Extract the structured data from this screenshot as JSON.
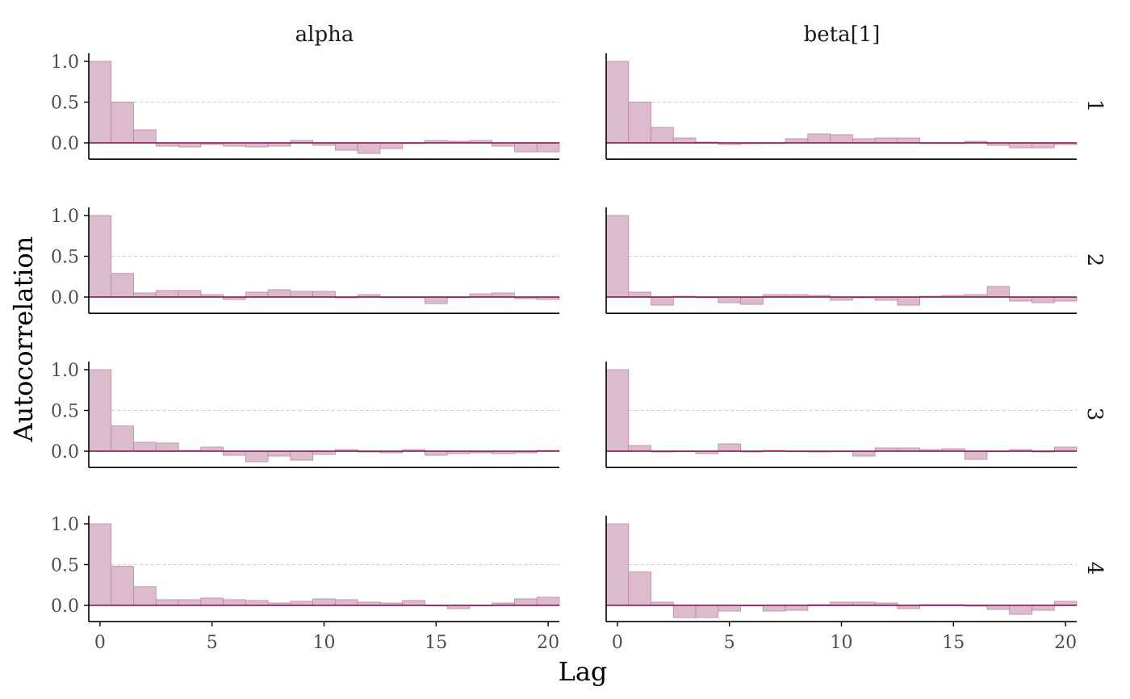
{
  "colors": {
    "bar_fill": "#dcbccc",
    "bar_stroke": "#b98aa2",
    "zero_line": "#7b0d4a",
    "grid": "#d2d2d2"
  },
  "chart_data": {
    "type": "bar",
    "xlabel": "Lag",
    "ylabel": "Autocorrelation",
    "xlim": [
      -0.5,
      20.5
    ],
    "ylim": [
      -0.2,
      1.1
    ],
    "x_ticks": [
      0,
      5,
      10,
      15,
      20
    ],
    "y_ticks": [
      0.0,
      0.5,
      1.0
    ],
    "y_tick_labels": [
      "0.0",
      "0.5",
      "1.0"
    ],
    "grid": "dashed horizontal at 0.5",
    "columns": [
      "alpha",
      "beta[1]"
    ],
    "rows": [
      "1",
      "2",
      "3",
      "4"
    ],
    "panels": [
      {
        "parameter": "alpha",
        "chain": "1",
        "lags": [
          0,
          1,
          2,
          3,
          4,
          5,
          6,
          7,
          8,
          9,
          10,
          11,
          12,
          13,
          14,
          15,
          16,
          17,
          18,
          19,
          20
        ],
        "values": [
          1.0,
          0.5,
          0.16,
          -0.04,
          -0.05,
          -0.02,
          -0.04,
          -0.05,
          -0.04,
          0.03,
          -0.03,
          -0.09,
          -0.13,
          -0.07,
          0.0,
          0.03,
          0.02,
          0.03,
          -0.04,
          -0.11,
          -0.11
        ]
      },
      {
        "parameter": "beta[1]",
        "chain": "1",
        "lags": [
          0,
          1,
          2,
          3,
          4,
          5,
          6,
          7,
          8,
          9,
          10,
          11,
          12,
          13,
          14,
          15,
          16,
          17,
          18,
          19,
          20
        ],
        "values": [
          1.0,
          0.5,
          0.19,
          0.06,
          0.01,
          -0.02,
          -0.01,
          0.0,
          0.05,
          0.11,
          0.1,
          0.05,
          0.06,
          0.06,
          0.0,
          0.0,
          0.02,
          -0.03,
          -0.06,
          -0.06,
          -0.02
        ]
      },
      {
        "parameter": "alpha",
        "chain": "2",
        "lags": [
          0,
          1,
          2,
          3,
          4,
          5,
          6,
          7,
          8,
          9,
          10,
          11,
          12,
          13,
          14,
          15,
          16,
          17,
          18,
          19,
          20
        ],
        "values": [
          1.0,
          0.29,
          0.05,
          0.08,
          0.08,
          0.03,
          -0.03,
          0.06,
          0.09,
          0.07,
          0.07,
          -0.01,
          0.03,
          0.0,
          0.0,
          -0.08,
          0.0,
          0.04,
          0.05,
          -0.02,
          -0.03
        ]
      },
      {
        "parameter": "beta[1]",
        "chain": "2",
        "lags": [
          0,
          1,
          2,
          3,
          4,
          5,
          6,
          7,
          8,
          9,
          10,
          11,
          12,
          13,
          14,
          15,
          16,
          17,
          18,
          19,
          20
        ],
        "values": [
          1.0,
          0.06,
          -0.1,
          0.01,
          0.0,
          -0.07,
          -0.09,
          0.03,
          0.03,
          0.02,
          -0.04,
          -0.01,
          -0.04,
          -0.1,
          0.01,
          0.02,
          0.03,
          0.13,
          -0.05,
          -0.07,
          -0.05
        ]
      },
      {
        "parameter": "alpha",
        "chain": "3",
        "lags": [
          0,
          1,
          2,
          3,
          4,
          5,
          6,
          7,
          8,
          9,
          10,
          11,
          12,
          13,
          14,
          15,
          16,
          17,
          18,
          19,
          20
        ],
        "values": [
          1.0,
          0.31,
          0.11,
          0.1,
          0.01,
          0.05,
          -0.05,
          -0.13,
          -0.06,
          -0.11,
          -0.04,
          0.02,
          -0.01,
          -0.02,
          0.02,
          -0.05,
          -0.03,
          -0.02,
          -0.03,
          -0.02,
          0.01
        ]
      },
      {
        "parameter": "beta[1]",
        "chain": "3",
        "lags": [
          0,
          1,
          2,
          3,
          4,
          5,
          6,
          7,
          8,
          9,
          10,
          11,
          12,
          13,
          14,
          15,
          16,
          17,
          18,
          19,
          20
        ],
        "values": [
          1.0,
          0.07,
          -0.01,
          0.0,
          -0.03,
          0.09,
          -0.01,
          0.01,
          0.0,
          -0.01,
          0.0,
          -0.06,
          0.04,
          0.04,
          0.02,
          0.03,
          -0.1,
          0.0,
          0.02,
          -0.01,
          0.05
        ]
      },
      {
        "parameter": "alpha",
        "chain": "4",
        "lags": [
          0,
          1,
          2,
          3,
          4,
          5,
          6,
          7,
          8,
          9,
          10,
          11,
          12,
          13,
          14,
          15,
          16,
          17,
          18,
          19,
          20
        ],
        "values": [
          1.0,
          0.48,
          0.23,
          0.07,
          0.07,
          0.09,
          0.07,
          0.06,
          0.03,
          0.05,
          0.08,
          0.07,
          0.04,
          0.03,
          0.06,
          0.0,
          -0.04,
          0.0,
          0.03,
          0.08,
          0.1
        ]
      },
      {
        "parameter": "beta[1]",
        "chain": "4",
        "lags": [
          0,
          1,
          2,
          3,
          4,
          5,
          6,
          7,
          8,
          9,
          10,
          11,
          12,
          13,
          14,
          15,
          16,
          17,
          18,
          19,
          20
        ],
        "values": [
          1.0,
          0.41,
          0.04,
          -0.15,
          -0.15,
          -0.07,
          0.0,
          -0.07,
          -0.06,
          0.01,
          0.04,
          0.04,
          0.03,
          -0.04,
          0.01,
          0.01,
          -0.01,
          -0.05,
          -0.11,
          -0.06,
          0.05
        ]
      }
    ]
  }
}
